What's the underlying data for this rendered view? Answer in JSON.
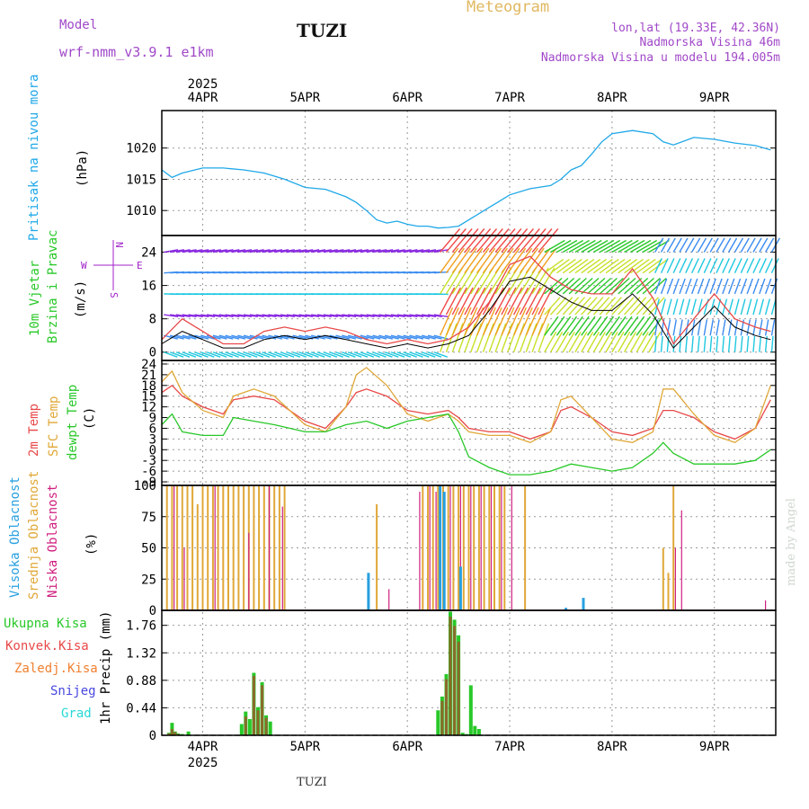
{
  "header": {
    "model_label": "Model",
    "model_name": "wrf-nmm_v3.9.1 e1km",
    "station": "TUZI",
    "product": "Meteogram",
    "coords": "lon,lat (19.33E, 42.36N)",
    "elevation": "Nadmorska Visina 46m",
    "model_elevation": "Nadmorska Visina u modelu 194.005m",
    "footer_station": "TUZI",
    "credit": "made by Angel"
  },
  "colors": {
    "pressure": "#1fa8e8",
    "temp2m": "#e84848",
    "sfc_temp": "#e0a838",
    "dewpt": "#28c828",
    "cloud_high": "#28a0e0",
    "cloud_mid": "#e0a838",
    "cloud_low": "#d02080",
    "precip_total": "#28c828",
    "precip_conv": "#e84848",
    "precip_frz": "#f08030",
    "snow": "#4848e0",
    "hail": "#28d8d8",
    "wind_speed": "#e84848",
    "gust": "#000000",
    "wind_axis": "#a020c8"
  },
  "time_axis": {
    "year": "2025",
    "top_labels": [
      "4APR",
      "5APR",
      "6APR",
      "7APR",
      "8APR",
      "9APR"
    ],
    "bottom_labels": [
      "4APR",
      "5APR",
      "6APR",
      "7APR",
      "8APR",
      "9APR"
    ],
    "start_day": 3.6,
    "end_day": 9.6
  },
  "chart_data": [
    {
      "type": "line",
      "panel": "pressure",
      "ylabel_colored": "Pritisak na nivou mora",
      "ylabel": "(hPa)",
      "ylim": [
        1006,
        1026
      ],
      "yticks": [
        1010,
        1015,
        1020
      ],
      "series": [
        {
          "x": [
            3.6,
            3.7,
            3.8,
            4.0,
            4.2,
            4.4,
            4.6,
            4.8,
            5.0,
            5.2,
            5.4,
            5.5,
            5.6,
            5.7,
            5.8,
            5.9,
            6.0,
            6.1,
            6.2,
            6.3,
            6.4,
            6.5,
            6.6,
            6.7,
            6.8,
            6.9,
            7.0,
            7.2,
            7.4,
            7.5,
            7.6,
            7.7,
            7.8,
            7.9,
            8.0,
            8.2,
            8.4,
            8.5,
            8.6,
            8.8,
            9.0,
            9.2,
            9.4,
            9.55
          ],
          "y": [
            1016.5,
            1015.3,
            1016,
            1016.8,
            1016.8,
            1016.5,
            1016,
            1015,
            1013.7,
            1013.4,
            1012.2,
            1011.3,
            1010,
            1008.5,
            1008,
            1008.3,
            1007.8,
            1007.5,
            1007.5,
            1007.2,
            1007.3,
            1007.5,
            1008.5,
            1009.5,
            1010.5,
            1011.5,
            1012.5,
            1013.5,
            1014,
            1015,
            1016.5,
            1017.2,
            1019,
            1021,
            1022.3,
            1022.8,
            1022.3,
            1021,
            1020.5,
            1021.7,
            1021.4,
            1020.8,
            1020.4,
            1019.7
          ]
        }
      ]
    },
    {
      "type": "line",
      "panel": "wind",
      "ylabel_colored_1": "10m Vjetar",
      "ylabel_colored_2": "Brzina i Pravac",
      "ylabel": "(m/s)",
      "compass": "N",
      "compass_s": "S",
      "compass_e": "E",
      "compass_w": "W",
      "ylim": [
        -2,
        28
      ],
      "yticks": [
        0,
        8,
        16,
        24
      ],
      "series": [
        {
          "name": "speed",
          "x": [
            3.6,
            3.8,
            4.0,
            4.2,
            4.4,
            4.6,
            4.8,
            5.0,
            5.2,
            5.4,
            5.6,
            5.8,
            6.0,
            6.2,
            6.4,
            6.6,
            6.8,
            7.0,
            7.2,
            7.4,
            7.6,
            7.8,
            8.0,
            8.2,
            8.4,
            8.6,
            8.8,
            9.0,
            9.2,
            9.4,
            9.55
          ],
          "y": [
            3,
            8,
            5,
            2,
            2,
            5,
            6,
            5,
            6,
            5,
            3,
            2,
            3,
            2,
            3,
            6,
            12,
            21,
            23,
            18,
            15,
            14,
            14,
            20,
            13,
            2,
            8,
            14,
            8,
            6,
            5
          ]
        },
        {
          "name": "gust",
          "x": [
            3.6,
            3.8,
            4.0,
            4.2,
            4.4,
            4.6,
            4.8,
            5.0,
            5.2,
            5.4,
            5.6,
            5.8,
            6.0,
            6.2,
            6.4,
            6.6,
            6.8,
            7.0,
            7.2,
            7.4,
            7.6,
            7.8,
            8.0,
            8.2,
            8.4,
            8.6,
            8.8,
            9.0,
            9.2,
            9.4,
            9.55
          ],
          "y": [
            2,
            5,
            3,
            1,
            1,
            3,
            4,
            3,
            4,
            3,
            2,
            1,
            2,
            1,
            2,
            4,
            10,
            17,
            18,
            15,
            12,
            10,
            10,
            14,
            9,
            1,
            6,
            11,
            6,
            4,
            3
          ]
        }
      ]
    },
    {
      "type": "line",
      "panel": "temperature",
      "ylabel_colored_1": "2m Temp",
      "ylabel_colored_2": "SFC Temp",
      "ylabel_colored_3": "dewpt Temp",
      "ylabel": "(C)",
      "ylim": [
        -10,
        25
      ],
      "yticks": [
        -9,
        -6,
        -3,
        0,
        3,
        6,
        9,
        12,
        15,
        18,
        21,
        24
      ],
      "series": [
        {
          "name": "2m Temp",
          "x": [
            3.6,
            3.7,
            3.8,
            4.0,
            4.2,
            4.3,
            4.5,
            4.7,
            5.0,
            5.2,
            5.4,
            5.5,
            5.6,
            5.8,
            6.0,
            6.2,
            6.4,
            6.5,
            6.6,
            6.8,
            7.0,
            7.2,
            7.4,
            7.5,
            7.6,
            7.8,
            8.0,
            8.2,
            8.4,
            8.5,
            8.6,
            8.8,
            9.0,
            9.2,
            9.4,
            9.55
          ],
          "y": [
            16,
            18,
            15,
            12,
            10,
            14,
            15,
            14,
            8,
            6,
            12,
            16,
            17,
            15,
            11,
            10,
            11,
            9,
            6,
            5,
            5,
            3,
            5,
            11,
            12,
            9,
            5,
            4,
            6,
            11,
            11,
            9,
            5,
            3,
            6,
            14
          ]
        },
        {
          "name": "SFC Temp",
          "x": [
            3.6,
            3.7,
            3.8,
            4.0,
            4.2,
            4.3,
            4.5,
            4.7,
            5.0,
            5.2,
            5.4,
            5.5,
            5.6,
            5.8,
            6.0,
            6.2,
            6.4,
            6.5,
            6.6,
            6.8,
            7.0,
            7.2,
            7.4,
            7.5,
            7.6,
            7.8,
            8.0,
            8.2,
            8.4,
            8.5,
            8.6,
            8.8,
            9.0,
            9.2,
            9.4,
            9.55
          ],
          "y": [
            19,
            22,
            16,
            11,
            9,
            15,
            17,
            15,
            7,
            5,
            12,
            21,
            23,
            18,
            10,
            8,
            10,
            8,
            5,
            4,
            4,
            2,
            5,
            14,
            15,
            9,
            3,
            2,
            5,
            17,
            17,
            10,
            4,
            2,
            6,
            18
          ]
        },
        {
          "name": "dewpt Temp",
          "x": [
            3.6,
            3.7,
            3.8,
            4.0,
            4.2,
            4.3,
            4.5,
            4.7,
            5.0,
            5.2,
            5.4,
            5.6,
            5.8,
            6.0,
            6.2,
            6.4,
            6.5,
            6.6,
            6.8,
            7.0,
            7.2,
            7.4,
            7.6,
            7.8,
            8.0,
            8.2,
            8.4,
            8.5,
            8.6,
            8.8,
            9.0,
            9.2,
            9.4,
            9.55
          ],
          "y": [
            7,
            10,
            5,
            4,
            4,
            9,
            8,
            7,
            5,
            5,
            7,
            8,
            6,
            8,
            9,
            10,
            5,
            -2,
            -5,
            -7,
            -7,
            -6,
            -4,
            -5,
            -6,
            -5,
            -1,
            2,
            -1,
            -4,
            -4,
            -4,
            -3,
            0
          ]
        }
      ]
    },
    {
      "type": "bar",
      "panel": "clouds",
      "ylabel_colored_1": "Visoka Oblacnost",
      "ylabel_colored_2": "Srednja Oblacnost",
      "ylabel_colored_3": "Niska Oblacnost",
      "ylabel": "(%)",
      "ylim": [
        0,
        100
      ],
      "yticks": [
        0,
        25,
        50,
        75,
        100
      ],
      "series": [
        {
          "name": "Srednja Oblacnost",
          "x": [
            3.65,
            3.7,
            3.75,
            3.8,
            3.85,
            3.9,
            3.95,
            4.0,
            4.05,
            4.1,
            4.15,
            4.2,
            4.25,
            4.3,
            4.35,
            4.4,
            4.45,
            4.5,
            4.55,
            4.6,
            4.65,
            4.7,
            4.75,
            4.8,
            5.7,
            6.15,
            6.2,
            6.25,
            6.3,
            6.35,
            6.4,
            6.45,
            6.5,
            6.55,
            6.6,
            6.65,
            6.7,
            6.75,
            6.8,
            6.85,
            6.9,
            6.95,
            7.15,
            8.5,
            8.55,
            8.6
          ],
          "y": [
            100,
            100,
            100,
            100,
            100,
            100,
            85,
            100,
            100,
            100,
            100,
            100,
            100,
            100,
            100,
            100,
            100,
            100,
            100,
            100,
            100,
            100,
            100,
            100,
            85,
            100,
            100,
            100,
            100,
            100,
            100,
            100,
            100,
            100,
            100,
            100,
            100,
            100,
            100,
            100,
            100,
            100,
            100,
            50,
            30,
            100
          ]
        },
        {
          "name": "Niska Oblacnost",
          "x": [
            3.72,
            3.82,
            4.12,
            4.45,
            4.65,
            4.78,
            5.82,
            6.12,
            6.22,
            6.28,
            6.42,
            6.52,
            6.62,
            6.72,
            6.82,
            6.92,
            7.02,
            8.62,
            8.68,
            9.5
          ],
          "y": [
            100,
            50,
            100,
            62,
            100,
            83,
            17,
            95,
            100,
            95,
            100,
            100,
            100,
            100,
            100,
            100,
            100,
            50,
            80,
            8
          ]
        },
        {
          "name": "Visoka Oblacnost",
          "x": [
            5.62,
            6.32,
            6.36,
            6.52,
            7.55,
            7.72
          ],
          "y": [
            30,
            100,
            95,
            35,
            2,
            10
          ]
        }
      ]
    },
    {
      "type": "bar",
      "panel": "precip",
      "legend_total": "Ukupna Kisa",
      "legend_conv": "Konvek.Kisa",
      "legend_frz": "Zaledj.Kisa",
      "legend_snow": "Snijeg",
      "legend_hail": "Grad",
      "ylabel": "1hr Precip (mm)",
      "ylim": [
        0,
        2.0
      ],
      "yticks": [
        0,
        0.44,
        0.88,
        1.32,
        1.76
      ],
      "series": [
        {
          "name": "Ukupna Kisa",
          "x": [
            3.67,
            3.7,
            3.73,
            3.76,
            3.8,
            3.86,
            4.38,
            4.42,
            4.46,
            4.5,
            4.54,
            4.58,
            4.62,
            4.66,
            6.3,
            6.34,
            6.38,
            6.42,
            6.46,
            6.5,
            6.54,
            6.58,
            6.62,
            6.66,
            6.7
          ],
          "y": [
            0.04,
            0.2,
            0.06,
            0.03,
            0.02,
            0.06,
            0.18,
            0.38,
            0.26,
            1.0,
            0.45,
            0.85,
            0.32,
            0.22,
            0.4,
            0.62,
            0.98,
            1.98,
            1.85,
            1.6,
            0.04,
            0.02,
            0.8,
            0.15,
            0.1
          ]
        },
        {
          "name": "Konvek.Kisa",
          "x": [
            3.67,
            3.7,
            3.73,
            3.76,
            4.42,
            4.5,
            4.54,
            4.58,
            4.62,
            6.34,
            6.38,
            6.42,
            6.46,
            6.5
          ],
          "y": [
            0.03,
            0.1,
            0.05,
            0.02,
            0.3,
            0.95,
            0.4,
            0.8,
            0.28,
            0.55,
            0.9,
            1.9,
            1.75,
            1.5
          ]
        }
      ]
    }
  ]
}
